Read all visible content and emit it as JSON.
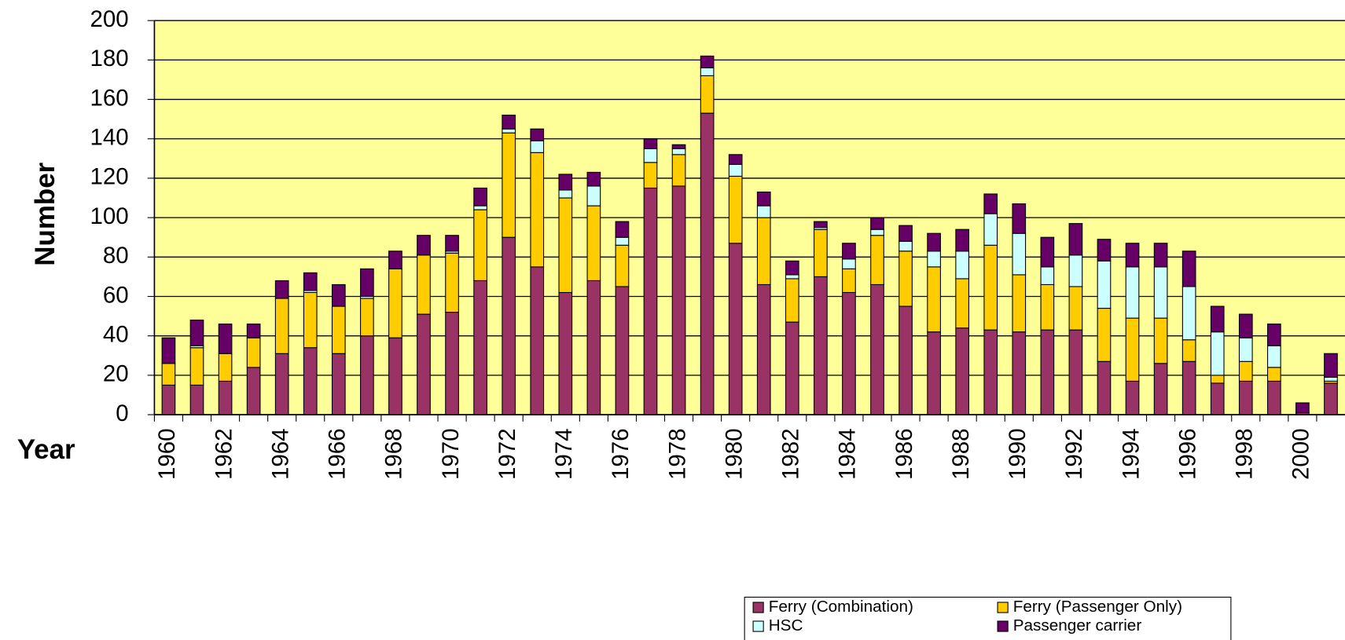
{
  "chart_data": {
    "type": "stacked_bar",
    "y_label": "Number",
    "x_label": "Year",
    "categories": [
      "1960",
      null,
      "1962",
      null,
      "1964",
      null,
      "1966",
      null,
      "1968",
      null,
      "1970",
      null,
      "1972",
      null,
      "1974",
      null,
      "1976",
      null,
      "1978",
      null,
      "1980",
      null,
      "1982",
      null,
      "1984",
      null,
      "1986",
      null,
      "1988",
      null,
      "1990",
      null,
      "1992",
      null,
      "1994",
      null,
      "1996",
      null,
      "1998",
      null,
      "2000",
      null
    ],
    "series": [
      {
        "name": "Ferry (Combination)",
        "color": "#993366",
        "values": [
          15,
          15,
          17,
          24,
          31,
          34,
          31,
          40,
          39,
          51,
          52,
          68,
          90,
          75,
          62,
          68,
          65,
          115,
          116,
          153,
          87,
          66,
          47,
          70,
          62,
          66,
          55,
          42,
          44,
          43,
          42,
          43,
          43,
          27,
          17,
          26,
          27,
          16,
          17,
          17,
          1,
          16
        ]
      },
      {
        "name": "Ferry (Passenger Only)",
        "color": "#ffcc00",
        "values": [
          11,
          19,
          14,
          15,
          28,
          28,
          24,
          19,
          35,
          30,
          30,
          36,
          53,
          58,
          48,
          38,
          21,
          13,
          16,
          19,
          34,
          34,
          22,
          24,
          12,
          25,
          28,
          33,
          25,
          43,
          29,
          23,
          22,
          27,
          32,
          23,
          11,
          4,
          10,
          7,
          0,
          1
        ]
      },
      {
        "name": "HSC",
        "color": "#ccffff",
        "values": [
          0,
          1,
          0,
          0,
          0,
          1,
          0,
          1,
          0,
          0,
          1,
          2,
          2,
          6,
          4,
          10,
          4,
          7,
          3,
          4,
          6,
          6,
          2,
          1,
          5,
          3,
          5,
          8,
          14,
          16,
          21,
          9,
          16,
          24,
          26,
          26,
          27,
          22,
          12,
          11,
          0,
          2
        ]
      },
      {
        "name": "Passenger carrier",
        "color": "#660066",
        "values": [
          13,
          13,
          15,
          7,
          9,
          9,
          11,
          14,
          9,
          10,
          8,
          9,
          7,
          6,
          8,
          7,
          8,
          5,
          2,
          6,
          5,
          7,
          7,
          3,
          8,
          6,
          8,
          9,
          11,
          10,
          15,
          15,
          16,
          11,
          12,
          12,
          18,
          13,
          12,
          11,
          5,
          12
        ]
      }
    ],
    "ylim": [
      0,
      200
    ],
    "yticks": [
      0,
      20,
      40,
      60,
      80,
      100,
      120,
      140,
      160,
      180,
      200
    ],
    "grid": true,
    "background": "#ffff99"
  }
}
